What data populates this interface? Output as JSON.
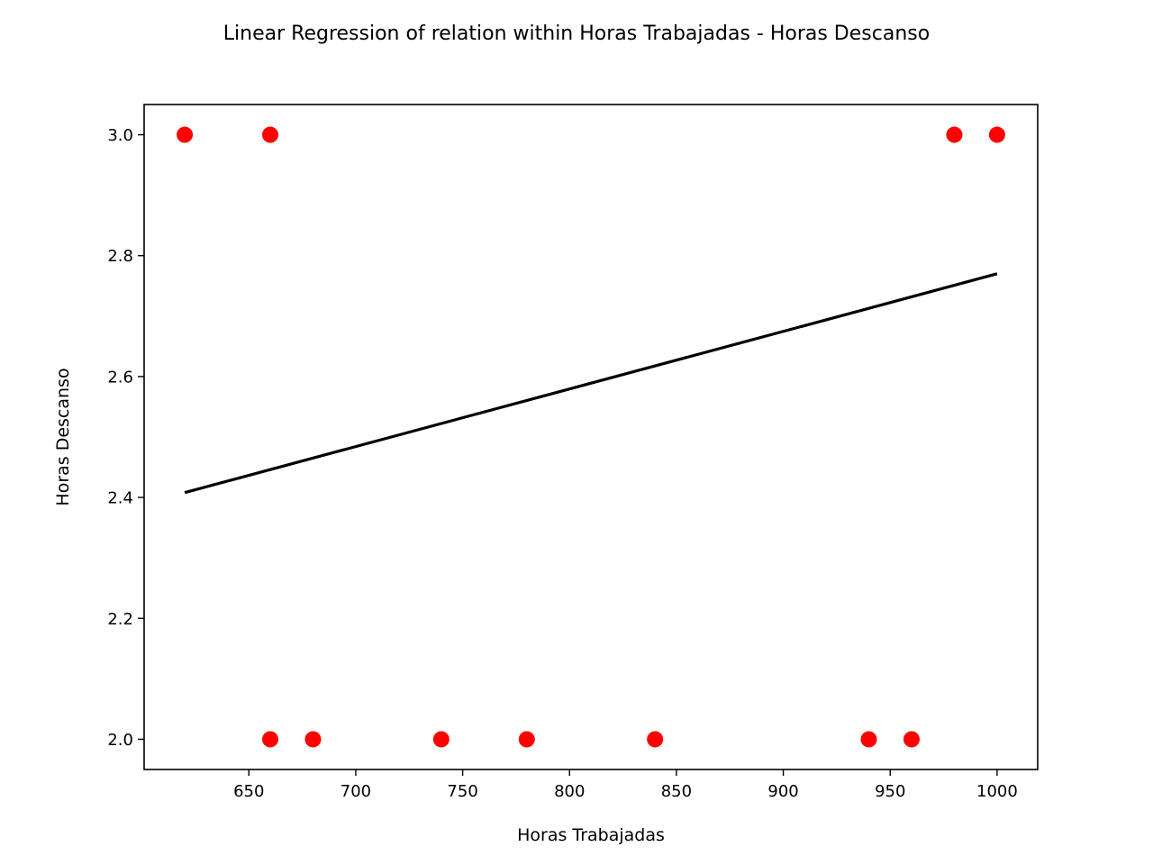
{
  "chart_data": {
    "type": "scatter",
    "title": "Linear Regression of relation within Horas Trabajadas - Horas Descanso",
    "xlabel": "Horas Trabajadas",
    "ylabel": "Horas Descanso",
    "xlim": [
      601,
      1019
    ],
    "ylim": [
      1.95,
      3.05
    ],
    "xticks": [
      650,
      700,
      750,
      800,
      850,
      900,
      950,
      1000
    ],
    "yticks": [
      2.0,
      2.2,
      2.4,
      2.6,
      2.8,
      3.0
    ],
    "xtick_labels": [
      "650",
      "700",
      "750",
      "800",
      "850",
      "900",
      "950",
      "1000"
    ],
    "ytick_labels": [
      "2.0",
      "2.2",
      "2.4",
      "2.6",
      "2.8",
      "3.0"
    ],
    "grid": false,
    "series": [
      {
        "kind": "scatter",
        "color": "#ff0000",
        "points": [
          {
            "x": 620,
            "y": 3.0
          },
          {
            "x": 660,
            "y": 3.0
          },
          {
            "x": 980,
            "y": 3.0
          },
          {
            "x": 1000,
            "y": 3.0
          },
          {
            "x": 660,
            "y": 2.0
          },
          {
            "x": 680,
            "y": 2.0
          },
          {
            "x": 740,
            "y": 2.0
          },
          {
            "x": 780,
            "y": 2.0
          },
          {
            "x": 840,
            "y": 2.0
          },
          {
            "x": 940,
            "y": 2.0
          },
          {
            "x": 960,
            "y": 2.0
          }
        ]
      },
      {
        "kind": "line",
        "color": "#000000",
        "points": [
          {
            "x": 620,
            "y": 2.408
          },
          {
            "x": 1000,
            "y": 2.77
          }
        ]
      }
    ]
  }
}
